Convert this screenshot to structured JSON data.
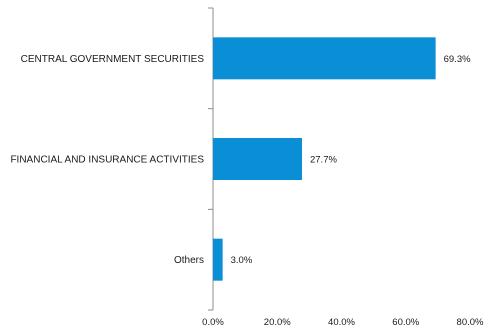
{
  "chart_data": {
    "type": "bar",
    "orientation": "horizontal",
    "categories": [
      "CENTRAL GOVERNMENT SECURITIES",
      "FINANCIAL AND INSURANCE ACTIVITIES",
      "Others"
    ],
    "values": [
      69.3,
      27.7,
      3.0
    ],
    "data_labels": [
      "69.3%",
      "27.7%",
      "3.0%"
    ],
    "xlim": [
      0,
      80
    ],
    "xticks": [
      0,
      20,
      40,
      60,
      80
    ],
    "xtick_labels": [
      "0.0%",
      "20.0%",
      "40.0%",
      "60.0%",
      "80.0%"
    ],
    "bar_color": "#0a8fd6",
    "axis_color": "#8c8c8c",
    "grid": false,
    "legend": "none"
  }
}
